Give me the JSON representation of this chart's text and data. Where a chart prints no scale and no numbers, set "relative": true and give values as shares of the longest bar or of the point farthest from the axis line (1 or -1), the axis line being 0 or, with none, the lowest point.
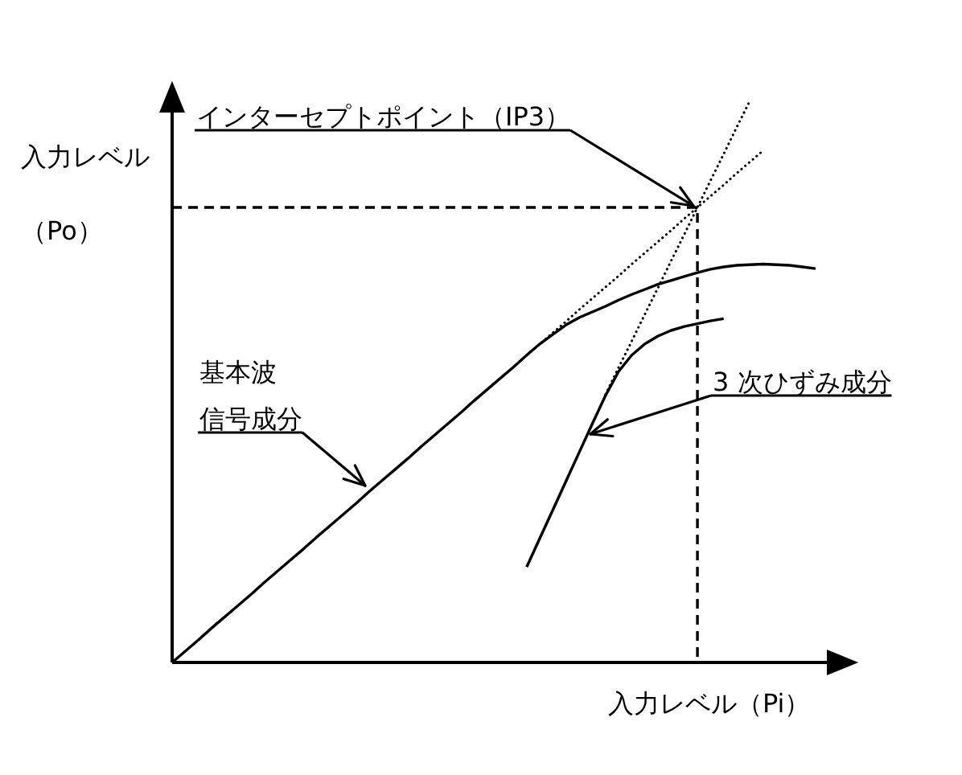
{
  "chart_data": {
    "type": "line",
    "relative": true,
    "xlabel": "入力レベル（Pi）",
    "ylabel": "入力レベル（Po）",
    "line_style": "solid",
    "categories": [
      null,
      null,
      null,
      null,
      null,
      null,
      null,
      null,
      null,
      null,
      null,
      null,
      null,
      null,
      null,
      null,
      null,
      null,
      null,
      null,
      null,
      null,
      null,
      null,
      null,
      null,
      null,
      null,
      null,
      null,
      null,
      null,
      null,
      null,
      null,
      null,
      null,
      null,
      null,
      null,
      null,
      null,
      null,
      null,
      null,
      null,
      null,
      null,
      null,
      null
    ],
    "series": [
      {
        "color": "#000000",
        "values": [
          0,
          0.02,
          0.04,
          0.061,
          0.081,
          0.101,
          0.121,
          0.142,
          0.162,
          0.182,
          0.202,
          0.223,
          0.243,
          0.263,
          0.283,
          0.304,
          0.324,
          0.344,
          0.364,
          0.385,
          0.405,
          0.425,
          0.445,
          0.466,
          0.486,
          0.506,
          0.526,
          0.547,
          0.567,
          0.584,
          0.601,
          0.614,
          0.624,
          0.634,
          0.645,
          0.655,
          0.664,
          0.673,
          0.68,
          0.687,
          0.694,
          0.7,
          0.704,
          0.707,
          0.708,
          0.709,
          0.708,
          0.707,
          0.704,
          0.701
        ]
      },
      {
        "color": "#000000",
        "line_style": "dotted",
        "values": [
          null,
          null,
          null,
          null,
          null,
          null,
          null,
          null,
          null,
          null,
          null,
          null,
          null,
          null,
          null,
          null,
          null,
          null,
          null,
          null,
          null,
          null,
          null,
          null,
          null,
          null,
          null,
          0.547,
          0.567,
          0.587,
          0.607,
          0.628,
          0.648,
          0.668,
          0.688,
          0.709,
          0.729,
          0.749,
          0.769,
          0.79,
          0.81,
          0.83,
          0.85,
          0.871,
          0.891,
          0.911,
          null,
          null,
          null,
          null
        ]
      },
      {
        "color": "#000000",
        "values": [
          null,
          null,
          null,
          null,
          null,
          null,
          null,
          null,
          null,
          null,
          null,
          null,
          null,
          null,
          null,
          null,
          null,
          null,
          null,
          null,
          null,
          null,
          null,
          null,
          null,
          null,
          null,
          0.17,
          0.221,
          0.272,
          0.323,
          0.374,
          0.425,
          0.475,
          0.518,
          0.547,
          0.567,
          0.581,
          0.591,
          0.598,
          0.603,
          0.608,
          0.612,
          null,
          null,
          null,
          null,
          null,
          null,
          null
        ]
      },
      {
        "color": "#000000",
        "line_style": "dotted",
        "values": [
          null,
          null,
          null,
          null,
          null,
          null,
          null,
          null,
          null,
          null,
          null,
          null,
          null,
          null,
          null,
          null,
          null,
          null,
          null,
          null,
          null,
          null,
          null,
          null,
          null,
          null,
          null,
          null,
          null,
          null,
          null,
          null,
          null,
          0.477,
          0.525,
          0.572,
          0.62,
          0.667,
          0.715,
          0.762,
          0.81,
          0.858,
          0.905,
          0.953,
          1,
          null,
          null,
          null,
          null,
          null
        ]
      },
      {
        "type": "step",
        "color": "#000000",
        "line_style": "dashed",
        "values": [
          0.81,
          0.81,
          0.81,
          0.81,
          0.81,
          0.81,
          0.81,
          0.81,
          0.81,
          0.81,
          0.81,
          0.81,
          0.81,
          0.81,
          0.81,
          0.81,
          0.81,
          0.81,
          0.81,
          0.81,
          0.81,
          0.81,
          0.81,
          0.81,
          0.81,
          0.81,
          0.81,
          0.81,
          0.81,
          0.81,
          0.81,
          0.81,
          0.81,
          0.81,
          0.81,
          0.81,
          0.81,
          0.81,
          0.81,
          0.81,
          0,
          null,
          null,
          null,
          null,
          null,
          null,
          null,
          null,
          null
        ]
      }
    ],
    "annotations": [
      "インターセプトポイント（IP3）",
      "基本波信号成分",
      "3 次ひずみ成分"
    ]
  }
}
